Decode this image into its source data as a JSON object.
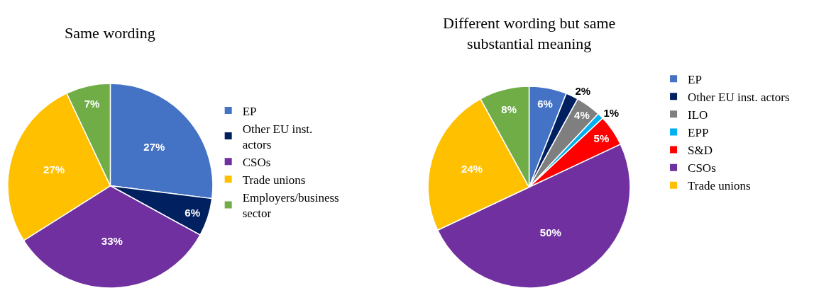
{
  "chart_data": [
    {
      "type": "pie",
      "title": "Same wording",
      "categories": [
        "EP",
        "Other EU inst. actors",
        "CSOs",
        "Trade unions",
        "Employers/business sector"
      ],
      "values": [
        27,
        6,
        33,
        27,
        7
      ],
      "colors": [
        "#4472c4",
        "#002060",
        "#7030a0",
        "#ffc000",
        "#70ad47"
      ],
      "value_labels": [
        "27%",
        "6%",
        "33%",
        "27%",
        "7%"
      ],
      "legend": "right"
    },
    {
      "type": "pie",
      "title": "Different wording but same substantial meaning",
      "categories": [
        "EP",
        "Other EU inst. actors",
        "ILO",
        "EPP",
        "S&D",
        "CSOs",
        "Trade unions",
        null
      ],
      "values": [
        6,
        2,
        4,
        1,
        5,
        50,
        24,
        8
      ],
      "colors": [
        "#4472c4",
        "#002060",
        "#7f7f7f",
        "#00b0f0",
        "#ff0000",
        "#7030a0",
        "#ffc000",
        "#70ad47"
      ],
      "value_labels": [
        "6%",
        "2%",
        "4%",
        "1%",
        "5%",
        "50%",
        "24%",
        "8%"
      ],
      "legend": "right"
    }
  ]
}
